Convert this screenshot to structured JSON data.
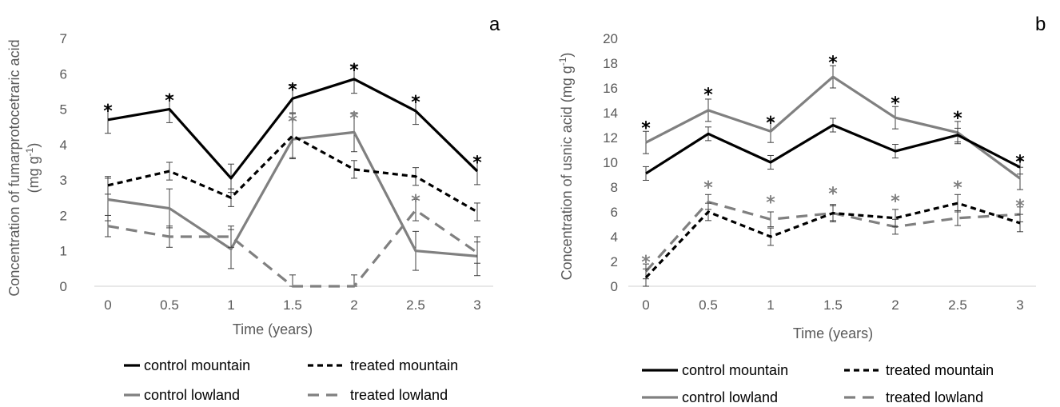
{
  "chart_data": [
    {
      "type": "line",
      "panel_label": "a",
      "ylabel_line1": "Concentration of fumarprotocetraric acid",
      "ylabel_line2": "(mg g",
      "ylabel_sup": "-1",
      "ylabel_close": ")",
      "xlabel": "Time (years)",
      "x": [
        "0",
        "0.5",
        "1",
        "1.5",
        "2",
        "2.5",
        "3"
      ],
      "ylim": [
        0,
        7
      ],
      "yticks": [
        "0",
        "1",
        "2",
        "3",
        "4",
        "5",
        "6",
        "7"
      ],
      "grid": false,
      "series": [
        {
          "name": "control mountain",
          "values": [
            4.7,
            5.0,
            3.05,
            5.3,
            5.85,
            4.95,
            3.25
          ],
          "errors": [
            0.38,
            0.38,
            0.4,
            0.4,
            0.4,
            0.38,
            0.38
          ],
          "color": "#000000",
          "dash": "solid"
        },
        {
          "name": "treated mountain",
          "values": [
            2.85,
            3.25,
            2.5,
            4.25,
            3.3,
            3.1,
            2.1
          ],
          "errors": [
            0.25,
            0.25,
            0.25,
            0.62,
            0.25,
            0.25,
            0.25
          ],
          "color": "#000000",
          "dash": "dashed"
        },
        {
          "name": "control lowland",
          "values": [
            2.45,
            2.2,
            1.05,
            4.15,
            4.35,
            1.0,
            0.85
          ],
          "errors": [
            0.6,
            0.55,
            0.55,
            0.55,
            0.55,
            0.55,
            0.55
          ],
          "color": "#808080",
          "dash": "solid"
        },
        {
          "name": "treated lowland",
          "values": [
            1.7,
            1.4,
            1.4,
            0.0,
            0.0,
            2.15,
            0.95
          ],
          "errors": [
            0.3,
            0.3,
            0.3,
            0.32,
            0.32,
            0.3,
            0.3
          ],
          "color": "#808080",
          "dash": "dashed"
        }
      ],
      "significance": [
        {
          "x_index": 0,
          "value": 5.1,
          "color": "#000000"
        },
        {
          "x_index": 1,
          "value": 5.4,
          "color": "#000000"
        },
        {
          "x_index": 3,
          "value": 5.7,
          "color": "#000000"
        },
        {
          "x_index": 4,
          "value": 6.25,
          "color": "#000000"
        },
        {
          "x_index": 4,
          "value": 4.9,
          "color": "#808080"
        },
        {
          "x_index": 5,
          "value": 5.35,
          "color": "#000000"
        },
        {
          "x_index": 5,
          "value": 2.55,
          "color": "#808080"
        },
        {
          "x_index": 6,
          "value": 3.65,
          "color": "#000000"
        },
        {
          "x_index": 3,
          "value": 4.8,
          "color": "#808080"
        }
      ],
      "legend_position": "bottom"
    },
    {
      "type": "line",
      "panel_label": "b",
      "ylabel_line1": "Concentration of usnic acid (mg g",
      "ylabel_sup": "-1",
      "ylabel_close": ")",
      "xlabel": "Time (years)",
      "x": [
        "0",
        "0.5",
        "1",
        "1.5",
        "2",
        "2.5",
        "3"
      ],
      "ylim": [
        0,
        20
      ],
      "yticks": [
        "0",
        "2",
        "4",
        "6",
        "8",
        "10",
        "12",
        "14",
        "16",
        "18",
        "20"
      ],
      "grid": false,
      "series": [
        {
          "name": "control mountain",
          "values": [
            9.1,
            12.3,
            10.0,
            13.0,
            10.9,
            12.2,
            9.6
          ],
          "errors": [
            0.55,
            0.55,
            0.55,
            0.55,
            0.55,
            0.55,
            0.55
          ],
          "color": "#000000",
          "dash": "solid"
        },
        {
          "name": "treated mountain",
          "values": [
            0.7,
            6.0,
            4.0,
            5.9,
            5.5,
            6.7,
            5.1
          ],
          "errors": [
            0.7,
            0.7,
            0.7,
            0.7,
            0.7,
            0.7,
            0.7
          ],
          "color": "#000000",
          "dash": "dashed"
        },
        {
          "name": "control lowland",
          "values": [
            11.6,
            14.2,
            12.5,
            16.9,
            13.6,
            12.4,
            8.7
          ],
          "errors": [
            0.9,
            0.9,
            0.9,
            0.9,
            0.9,
            0.9,
            0.9
          ],
          "color": "#808080",
          "dash": "solid"
        },
        {
          "name": "treated lowland",
          "values": [
            1.2,
            6.8,
            5.4,
            5.9,
            4.8,
            5.5,
            5.8
          ],
          "errors": [
            0.6,
            0.6,
            0.6,
            0.6,
            0.6,
            0.6,
            0.6
          ],
          "color": "#808080",
          "dash": "dashed"
        }
      ],
      "significance": [
        {
          "x_index": 0,
          "value": 13.2,
          "color": "#000000"
        },
        {
          "x_index": 1,
          "value": 15.9,
          "color": "#000000"
        },
        {
          "x_index": 2,
          "value": 13.6,
          "color": "#000000"
        },
        {
          "x_index": 3,
          "value": 18.5,
          "color": "#000000"
        },
        {
          "x_index": 4,
          "value": 15.2,
          "color": "#000000"
        },
        {
          "x_index": 5,
          "value": 14.0,
          "color": "#000000"
        },
        {
          "x_index": 6,
          "value": 10.5,
          "color": "#000000"
        },
        {
          "x_index": 0,
          "value": 2.4,
          "color": "#808080"
        },
        {
          "x_index": 1,
          "value": 8.4,
          "color": "#808080"
        },
        {
          "x_index": 2,
          "value": 7.2,
          "color": "#808080"
        },
        {
          "x_index": 3,
          "value": 7.9,
          "color": "#808080"
        },
        {
          "x_index": 4,
          "value": 7.3,
          "color": "#808080"
        },
        {
          "x_index": 5,
          "value": 8.4,
          "color": "#808080"
        },
        {
          "x_index": 6,
          "value": 6.9,
          "color": "#808080"
        }
      ],
      "legend_position": "bottom"
    }
  ]
}
